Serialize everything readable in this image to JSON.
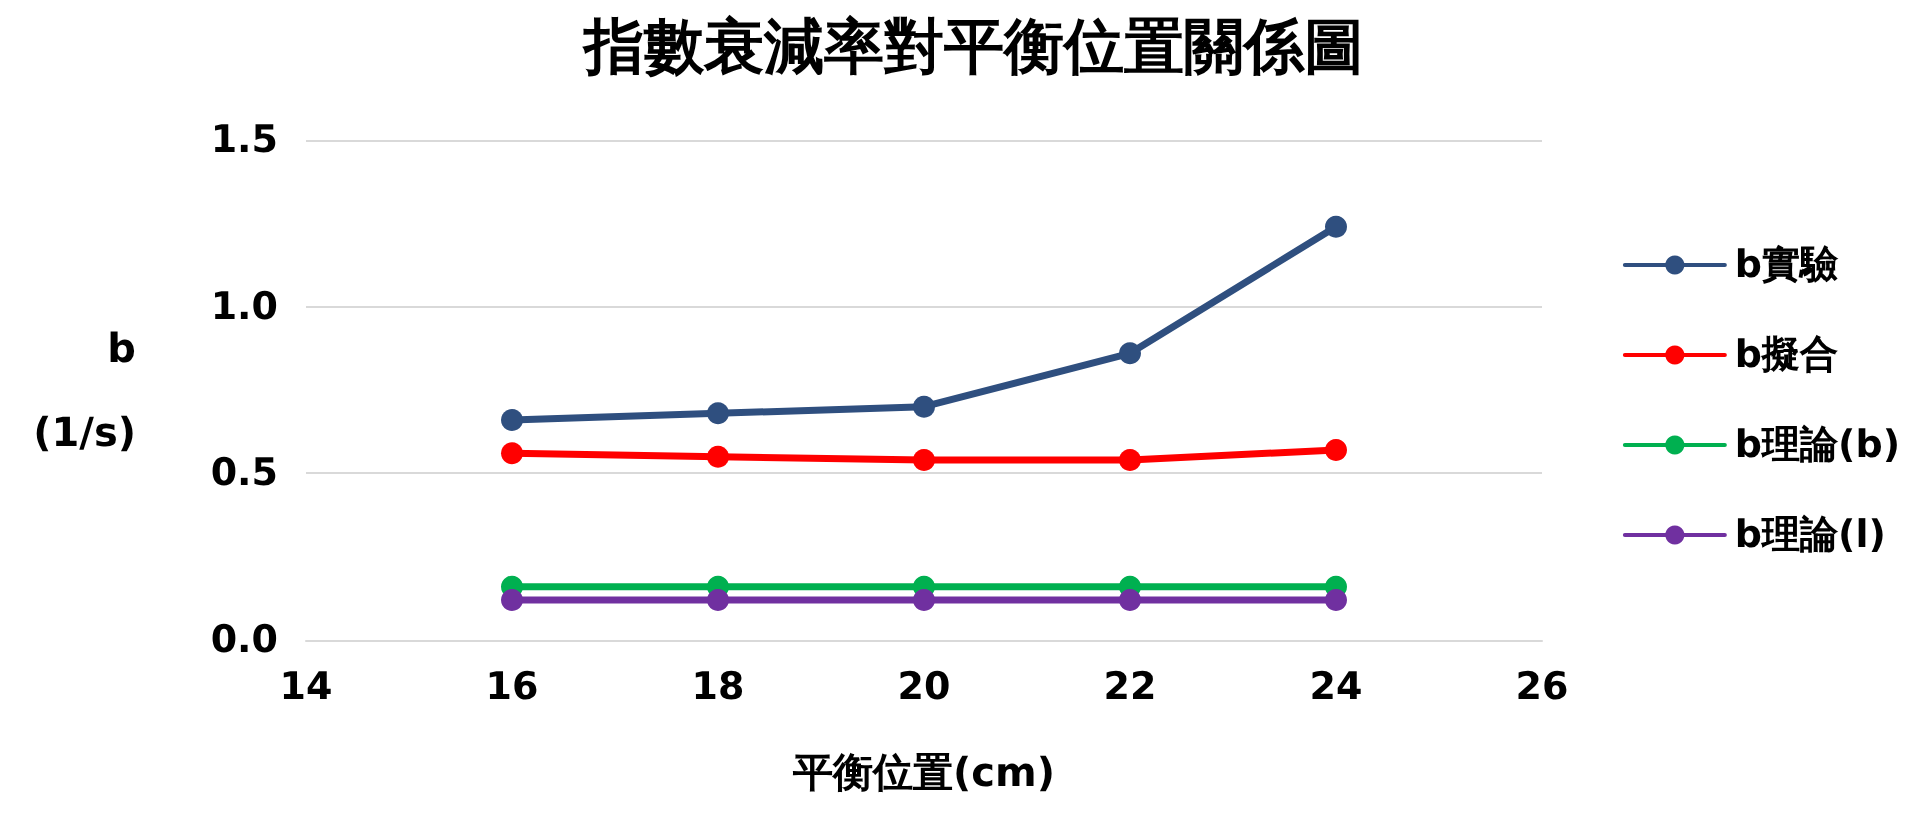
{
  "chart_data": {
    "type": "line",
    "title": "指數衰減率對平衡位置關係圖",
    "xlabel": "平衡位置(cm)",
    "ylabel": "b\n(1/s)",
    "x": [
      16,
      18,
      20,
      22,
      24
    ],
    "series": [
      {
        "name": "b實驗",
        "color": "#2f4f7f",
        "values": [
          0.66,
          0.68,
          0.7,
          0.86,
          1.24
        ]
      },
      {
        "name": "b擬合",
        "color": "#ff0000",
        "values": [
          0.56,
          0.55,
          0.54,
          0.54,
          0.57
        ]
      },
      {
        "name": "b理論(b)",
        "color": "#00b050",
        "values": [
          0.16,
          0.16,
          0.16,
          0.16,
          0.16
        ]
      },
      {
        "name": "b理論(l)",
        "color": "#7030a0",
        "values": [
          0.12,
          0.12,
          0.12,
          0.12,
          0.12
        ]
      }
    ],
    "xlim": [
      14,
      26
    ],
    "xticks": [
      14,
      16,
      18,
      20,
      22,
      24,
      26
    ],
    "ylim": [
      0,
      1.5
    ],
    "yticks": [
      {
        "value": 0,
        "label": "0.0"
      },
      {
        "value": 0.5,
        "label": "0.5"
      },
      {
        "value": 1,
        "label": "1.0"
      },
      {
        "value": 1.5,
        "label": "1.5"
      }
    ],
    "grid": "y",
    "legend": "right",
    "marker": "circle",
    "line_style": "solid"
  }
}
